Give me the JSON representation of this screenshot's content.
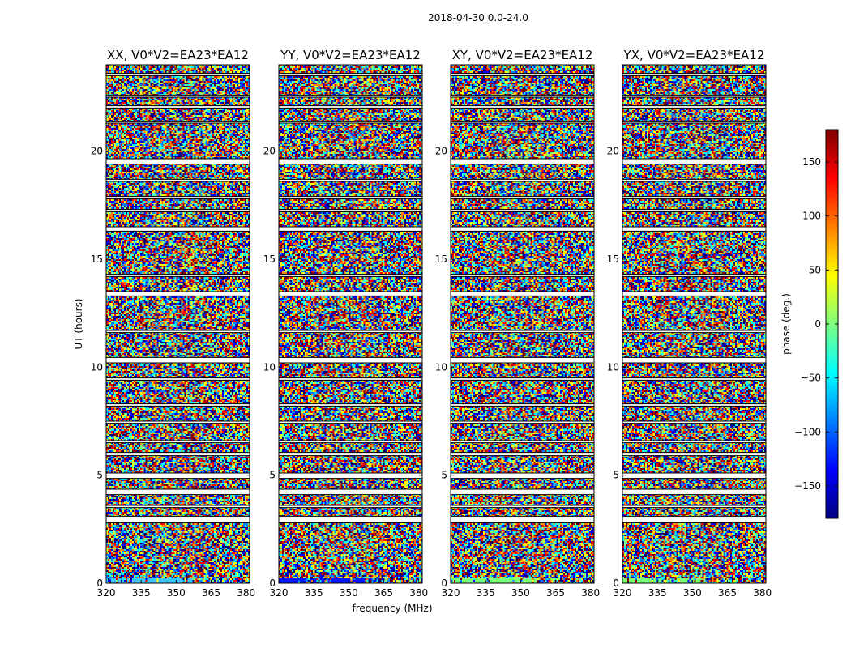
{
  "figure": {
    "suptitle": "2018-04-30 0.0-24.0"
  },
  "chart_data": {
    "type": "heatmap",
    "xlabel": "frequency (MHz)",
    "ylabel": "UT (hours)",
    "xlim": [
      320,
      381.5
    ],
    "ylim": [
      0,
      24
    ],
    "x_ticks": [
      320,
      335,
      350,
      365,
      380
    ],
    "y_ticks": [
      0,
      5,
      10,
      15,
      20
    ],
    "panels": [
      {
        "title": "XX, V0*V2=EA23*EA12",
        "low_band_color": "#3ec7ff"
      },
      {
        "title": "YY, V0*V2=EA23*EA12",
        "low_band_color": "#0016ff"
      },
      {
        "title": "XY, V0*V2=EA23*EA12",
        "low_band_color": "#7cff79"
      },
      {
        "title": "YX, V0*V2=EA23*EA12",
        "low_band_color": "#7cff79"
      }
    ],
    "flagged_ut_bands": [
      [
        2.8,
        3.1
      ],
      [
        3.5,
        3.6
      ],
      [
        4.1,
        4.35
      ],
      [
        4.85,
        5.1
      ],
      [
        5.9,
        6.05
      ],
      [
        6.5,
        6.6
      ],
      [
        7.4,
        7.5
      ],
      [
        8.2,
        8.3
      ],
      [
        9.4,
        9.5
      ],
      [
        10.2,
        10.45
      ],
      [
        11.6,
        11.7
      ],
      [
        13.3,
        13.5
      ],
      [
        14.2,
        14.3
      ],
      [
        16.3,
        16.5
      ],
      [
        17.2,
        17.3
      ],
      [
        17.8,
        17.9
      ],
      [
        18.6,
        18.7
      ],
      [
        19.4,
        19.65
      ],
      [
        21.3,
        21.4
      ],
      [
        22.0,
        22.1
      ],
      [
        22.5,
        22.6
      ],
      [
        23.5,
        23.6
      ]
    ],
    "colorbar": {
      "label": "phase (deg.)",
      "range": [
        -180,
        180
      ],
      "ticks": [
        -150,
        -100,
        -50,
        0,
        50,
        100,
        150
      ],
      "tick_labels": [
        "−150",
        "−100",
        "−50",
        "0",
        "50",
        "100",
        "150"
      ],
      "colormap": [
        "#00007f",
        "#0000ff",
        "#007fff",
        "#00ffff",
        "#7fff7f",
        "#ffff00",
        "#ff7f00",
        "#ff0000",
        "#7f0000"
      ]
    }
  }
}
